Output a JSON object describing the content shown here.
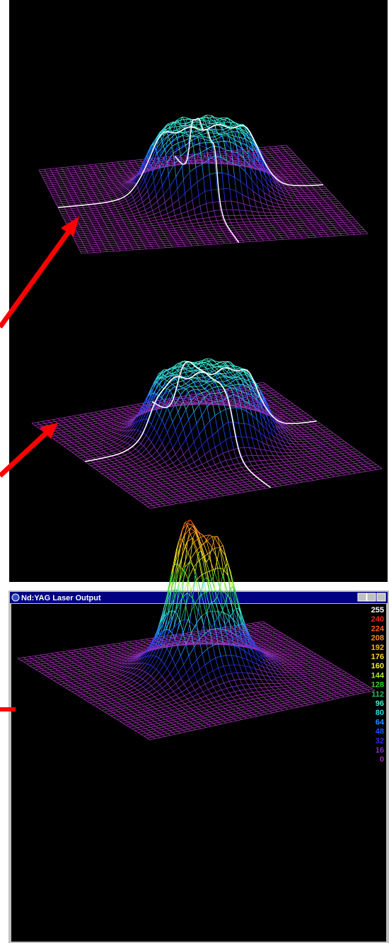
{
  "window": {
    "title": "Nd:YAG Laser Output"
  },
  "legend": {
    "labels": [
      "255",
      "240",
      "224",
      "208",
      "192",
      "176",
      "160",
      "144",
      "128",
      "112",
      "96",
      "80",
      "64",
      "48",
      "32",
      "16",
      "0"
    ],
    "colors": [
      "#ffffff",
      "#ff2020",
      "#ff5a1e",
      "#ff8a1a",
      "#ffb020",
      "#ffd820",
      "#f0f020",
      "#a8f020",
      "#30d830",
      "#20c060",
      "#40f0d0",
      "#30d8e8",
      "#2090ff",
      "#2050ff",
      "#3030e0",
      "#8030c0",
      "#a030b0"
    ]
  }
}
